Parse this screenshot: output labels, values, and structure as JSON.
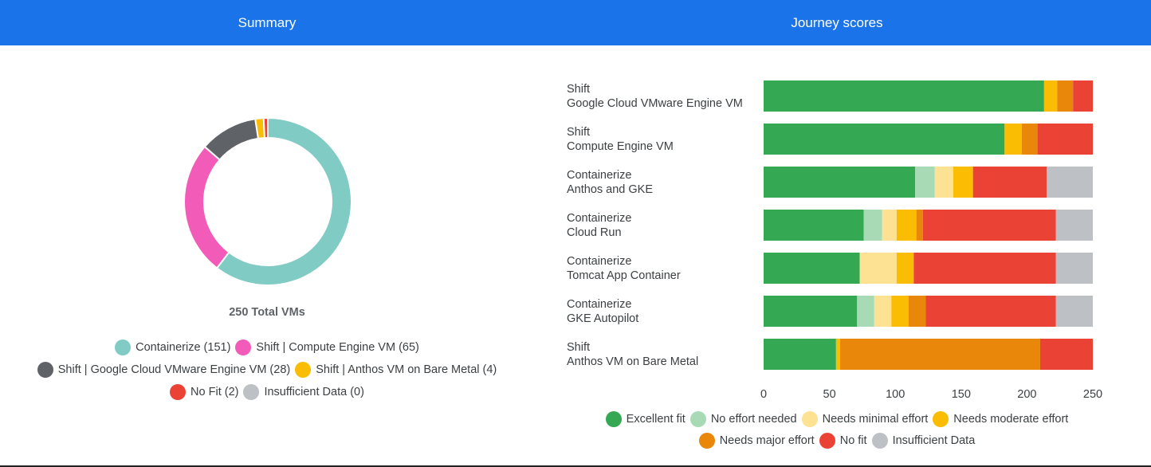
{
  "summary": {
    "title": "Summary",
    "total_label": "250 Total VMs"
  },
  "journey": {
    "title": "Journey scores"
  },
  "chart_data": [
    {
      "type": "pie",
      "style": "donut",
      "title": "Summary",
      "center_label": "250 Total VMs",
      "slices": [
        {
          "label": "Containerize (151)",
          "name": "Containerize",
          "value": 151,
          "color": "#80cbc4"
        },
        {
          "label": "Shift | Compute Engine VM (65)",
          "name": "Shift | Compute Engine VM",
          "value": 65,
          "color": "#f25bb7"
        },
        {
          "label": "Shift | Google Cloud VMware Engine VM (28)",
          "name": "Shift | Google Cloud VMware Engine VM",
          "value": 28,
          "color": "#5f6368"
        },
        {
          "label": "Shift | Anthos VM on Bare Metal (4)",
          "name": "Shift | Anthos VM on Bare Metal",
          "value": 4,
          "color": "#fbbc04"
        },
        {
          "label": "No Fit (2)",
          "name": "No Fit",
          "value": 2,
          "color": "#ea4335"
        },
        {
          "label": "Insufficient Data (0)",
          "name": "Insufficient Data",
          "value": 0,
          "color": "#bdc1c6"
        }
      ]
    },
    {
      "type": "bar",
      "orientation": "horizontal",
      "stacked": true,
      "title": "Journey scores",
      "categories": [
        [
          "Shift",
          "Google Cloud VMware Engine VM"
        ],
        [
          "Shift",
          "Compute Engine VM"
        ],
        [
          "Containerize",
          "Anthos and GKE"
        ],
        [
          "Containerize",
          "Cloud Run"
        ],
        [
          "Containerize",
          "Tomcat App Container"
        ],
        [
          "Containerize",
          "GKE Autopilot"
        ],
        [
          "Shift",
          "Anthos VM on Bare Metal"
        ]
      ],
      "xlim": [
        0,
        250
      ],
      "xticks": [
        "0",
        "50",
        "100",
        "150",
        "200",
        "250"
      ],
      "legend_position": "bottom",
      "series": [
        {
          "name": "Excellent fit",
          "color": "#34a853",
          "values": [
            213,
            183,
            115,
            76,
            73,
            71,
            55
          ]
        },
        {
          "name": "No effort needed",
          "color": "#a8dab5",
          "values": [
            0,
            0,
            15,
            14,
            0,
            13,
            0
          ]
        },
        {
          "name": "Needs minimal effort",
          "color": "#fde293",
          "values": [
            0,
            0,
            14,
            11,
            28,
            13,
            0
          ]
        },
        {
          "name": "Needs moderate effort",
          "color": "#fbbc04",
          "values": [
            10,
            13,
            15,
            15,
            13,
            13,
            3
          ]
        },
        {
          "name": "Needs major effort",
          "color": "#e8870a",
          "values": [
            12,
            12,
            0,
            5,
            0,
            13,
            152
          ]
        },
        {
          "name": "No fit",
          "color": "#ea4335",
          "values": [
            15,
            42,
            56,
            101,
            108,
            99,
            40
          ]
        },
        {
          "name": "Insufficient Data",
          "color": "#bdc1c6",
          "values": [
            0,
            0,
            35,
            28,
            28,
            28,
            0
          ]
        }
      ]
    }
  ]
}
